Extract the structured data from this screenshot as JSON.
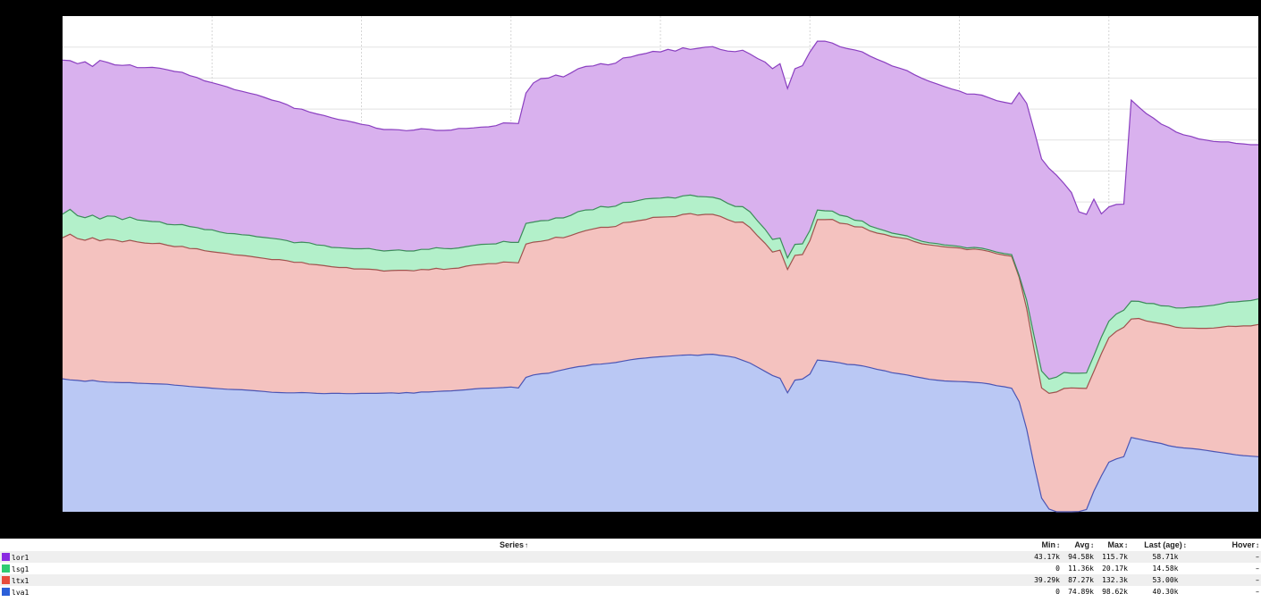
{
  "chart_data": {
    "type": "area",
    "stacked": true,
    "grid": true,
    "xlim": [
      0,
      160
    ],
    "ylim": [
      0,
      180000
    ],
    "x": [
      0,
      1,
      2,
      3,
      4,
      5,
      6,
      7,
      8,
      9,
      10,
      11,
      12,
      13,
      14,
      15,
      16,
      17,
      18,
      19,
      20,
      21,
      22,
      23,
      24,
      25,
      26,
      27,
      28,
      29,
      30,
      31,
      32,
      33,
      34,
      35,
      36,
      37,
      38,
      39,
      40,
      41,
      42,
      43,
      44,
      45,
      46,
      47,
      48,
      49,
      50,
      51,
      52,
      53,
      54,
      55,
      56,
      57,
      58,
      59,
      60,
      61,
      62,
      63,
      64,
      65,
      66,
      67,
      68,
      69,
      70,
      71,
      72,
      73,
      74,
      75,
      76,
      77,
      78,
      79,
      80,
      81,
      82,
      83,
      84,
      85,
      86,
      87,
      88,
      89,
      90,
      91,
      92,
      93,
      94,
      95,
      96,
      97,
      98,
      99,
      100,
      101,
      102,
      103,
      104,
      105,
      106,
      107,
      108,
      109,
      110,
      111,
      112,
      113,
      114,
      115,
      116,
      117,
      118,
      119,
      120,
      121,
      122,
      123,
      124,
      125,
      126,
      127,
      128,
      129,
      130,
      131,
      132,
      133,
      134,
      135,
      136,
      137,
      138,
      139,
      140,
      141,
      142,
      143,
      144,
      145,
      146,
      147,
      148,
      149,
      150,
      151,
      152,
      153,
      154,
      155,
      156,
      157,
      158,
      159,
      160
    ],
    "series": [
      {
        "name": "lva1",
        "color": "#bac8f4",
        "line": "#4b55b4",
        "values": [
          48300,
          47900,
          47700,
          47400,
          47700,
          47300,
          47100,
          47000,
          46900,
          46900,
          46700,
          46600,
          46500,
          46400,
          46300,
          46000,
          45800,
          45500,
          45300,
          45100,
          44900,
          44700,
          44500,
          44400,
          44300,
          44100,
          43900,
          43700,
          43400,
          43300,
          43200,
          43200,
          43300,
          43200,
          43000,
          42900,
          43000,
          43000,
          42900,
          42900,
          43000,
          43000,
          43000,
          43100,
          43200,
          43000,
          43300,
          43100,
          43500,
          43500,
          43700,
          43800,
          43900,
          44100,
          44300,
          44600,
          44800,
          44900,
          45000,
          45100,
          45300,
          45000,
          48800,
          49700,
          50100,
          50300,
          51000,
          51600,
          52200,
          52700,
          53000,
          53500,
          53600,
          53900,
          54200,
          54700,
          55200,
          55600,
          55800,
          56100,
          56300,
          56500,
          56700,
          56900,
          57000,
          56800,
          57100,
          57200,
          56800,
          56500,
          56000,
          55000,
          54000,
          52500,
          51000,
          49500,
          48500,
          43200,
          47800,
          48200,
          50000,
          55100,
          54800,
          54500,
          54100,
          53500,
          53400,
          53000,
          52400,
          51700,
          51200,
          50500,
          50100,
          49700,
          49100,
          48600,
          48100,
          47800,
          47500,
          47400,
          47300,
          47200,
          47000,
          46800,
          46400,
          45800,
          45400,
          44900,
          40000,
          30000,
          17000,
          5000,
          1000,
          0,
          0,
          0,
          100,
          800,
          7500,
          13000,
          18000,
          19200,
          20000,
          27000,
          26400,
          25800,
          25300,
          24800,
          24000,
          23500,
          23200,
          23000,
          22700,
          22300,
          21900,
          21500,
          21100,
          20700,
          20400,
          20200,
          20000
        ]
      },
      {
        "name": "ltx1",
        "color": "#f4c2bf",
        "line": "#a0524e",
        "values": [
          51200,
          52900,
          51500,
          51200,
          51800,
          51100,
          51900,
          51700,
          51100,
          51700,
          51300,
          51000,
          50900,
          51100,
          50500,
          50300,
          50600,
          50100,
          50200,
          49700,
          49500,
          49400,
          49300,
          48900,
          48800,
          48700,
          48500,
          48300,
          48200,
          48300,
          48000,
          47400,
          47300,
          46700,
          46700,
          46500,
          46000,
          45700,
          45800,
          45300,
          45200,
          45100,
          44900,
          44300,
          44400,
          44700,
          44400,
          44400,
          44500,
          44400,
          44700,
          44200,
          44400,
          44400,
          44900,
          45000,
          45000,
          45200,
          45100,
          45600,
          45300,
          45400,
          48400,
          48200,
          48100,
          48400,
          48700,
          47900,
          48100,
          48600,
          49100,
          49200,
          49700,
          49400,
          49400,
          50300,
          50000,
          50100,
          50300,
          50800,
          50700,
          50600,
          50500,
          51100,
          51300,
          50900,
          50900,
          50800,
          50500,
          49600,
          49100,
          50200,
          49200,
          47700,
          46500,
          44800,
          46500,
          44800,
          45300,
          45200,
          48500,
          51000,
          51300,
          51700,
          50700,
          51000,
          50100,
          50400,
          49600,
          49500,
          49500,
          49400,
          49400,
          49400,
          49000,
          48700,
          48800,
          48800,
          48700,
          48600,
          48500,
          48000,
          48400,
          48300,
          48100,
          47900,
          47800,
          47900,
          45100,
          43800,
          42000,
          40000,
          42000,
          43500,
          44800,
          45000,
          44800,
          44000,
          43500,
          44400,
          45200,
          46300,
          47000,
          43000,
          43800,
          43500,
          43500,
          43500,
          43800,
          43500,
          43500,
          43700,
          43900,
          44300,
          44800,
          45500,
          46300,
          46600,
          47100,
          47300,
          48000
        ]
      },
      {
        "name": "lsg1",
        "color": "#b3f0ca",
        "line": "#3c8c5a",
        "values": [
          8600,
          9000,
          8300,
          8200,
          8200,
          7900,
          8400,
          8600,
          8100,
          8400,
          8000,
          8100,
          8000,
          7800,
          7600,
          7900,
          7900,
          8000,
          7700,
          7700,
          8000,
          7500,
          7300,
          7700,
          7500,
          7600,
          7500,
          7600,
          7700,
          7400,
          7300,
          7100,
          7300,
          7800,
          7200,
          7300,
          7000,
          7200,
          7000,
          7300,
          7300,
          7500,
          7200,
          7300,
          7300,
          7400,
          7000,
          7200,
          7300,
          7400,
          7500,
          7600,
          7200,
          7300,
          7100,
          7100,
          7300,
          7100,
          7200,
          7500,
          7200,
          7400,
          7500,
          7300,
          7500,
          7100,
          7000,
          7200,
          7300,
          7700,
          7500,
          7000,
          7600,
          7300,
          7400,
          7300,
          7200,
          7300,
          7500,
          6900,
          6900,
          7100,
          6700,
          6700,
          6700,
          6800,
          6400,
          6200,
          6200,
          5900,
          5800,
          5600,
          5700,
          5400,
          5100,
          4600,
          4400,
          4200,
          4000,
          3900,
          3700,
          3500,
          3200,
          3000,
          2900,
          2700,
          2400,
          2200,
          1800,
          1700,
          1400,
          1300,
          1200,
          1100,
          1000,
          900,
          800,
          800,
          700,
          700,
          600,
          600,
          600,
          600,
          600,
          600,
          600,
          600,
          700,
          3000,
          4800,
          6100,
          5200,
          5400,
          5800,
          5300,
          5400,
          5600,
          5700,
          6000,
          6000,
          6300,
          6200,
          6500,
          6200,
          6400,
          6800,
          6500,
          6900,
          7000,
          7300,
          7600,
          7800,
          8100,
          8300,
          8500,
          8700,
          8900,
          9000,
          9200,
          9300
        ]
      },
      {
        "name": "lor1",
        "color": "#d9b1ee",
        "line": "#8a3fc0",
        "values": [
          55900,
          54000,
          55200,
          56600,
          54000,
          57600,
          55800,
          55000,
          56000,
          55300,
          55300,
          55600,
          56000,
          55800,
          56100,
          55700,
          55300,
          54800,
          54500,
          54000,
          53400,
          53500,
          53200,
          52300,
          52100,
          51600,
          51500,
          50900,
          50200,
          49900,
          49400,
          48800,
          48300,
          47500,
          47600,
          47200,
          47100,
          46500,
          46300,
          45900,
          45200,
          44700,
          44200,
          44100,
          43900,
          43600,
          43700,
          43900,
          43800,
          43600,
          42600,
          42900,
          43100,
          43400,
          42900,
          42700,
          42600,
          42600,
          42900,
          43000,
          43300,
          43200,
          47300,
          50500,
          51600,
          51700,
          51900,
          51200,
          51700,
          51900,
          52100,
          52200,
          51800,
          51700,
          51900,
          52500,
          52700,
          52900,
          52800,
          53400,
          53100,
          53700,
          53400,
          53800,
          52900,
          53800,
          54300,
          54700,
          54400,
          55300,
          56200,
          56800,
          57300,
          59000,
          60700,
          62000,
          63300,
          61500,
          63800,
          64700,
          64800,
          61300,
          61600,
          61000,
          61200,
          61000,
          61800,
          61400,
          61700,
          61400,
          61100,
          60700,
          60400,
          60000,
          59600,
          59200,
          58600,
          58000,
          57500,
          56800,
          56400,
          55900,
          55700,
          55600,
          55200,
          55000,
          54900,
          54800,
          66400,
          71500,
          74700,
          77000,
          76500,
          73300,
          68600,
          65600,
          58600,
          57600,
          56800,
          44800,
          41500,
          39800,
          38500,
          73000,
          70600,
          68900,
          67300,
          66000,
          64900,
          63900,
          62900,
          62000,
          61000,
          60300,
          59500,
          58800,
          58200,
          57600,
          57100,
          56600,
          56000
        ]
      }
    ]
  },
  "legend": {
    "headers": {
      "series": "Series",
      "min": "Min",
      "avg": "Avg",
      "max": "Max",
      "last": "Last (age)",
      "hover": "Hover"
    },
    "sort_icons": {
      "series": "↑",
      "other": "↕"
    },
    "rows": [
      {
        "name": "lor1",
        "color": "#8a2be2",
        "min": "43.17k",
        "avg": "94.58k",
        "max": "115.7k",
        "last": "58.71k",
        "hover": "–"
      },
      {
        "name": "lsg1",
        "color": "#2ecc71",
        "min": "0",
        "avg": "11.36k",
        "max": "20.17k",
        "last": "14.58k",
        "hover": "–"
      },
      {
        "name": "ltx1",
        "color": "#e74c3c",
        "min": "39.29k",
        "avg": "87.27k",
        "max": "132.3k",
        "last": "53.00k",
        "hover": "–"
      },
      {
        "name": "lva1",
        "color": "#2b5fd9",
        "min": "0",
        "avg": "74.89k",
        "max": "98.62k",
        "last": "40.30k",
        "hover": "–"
      }
    ]
  }
}
